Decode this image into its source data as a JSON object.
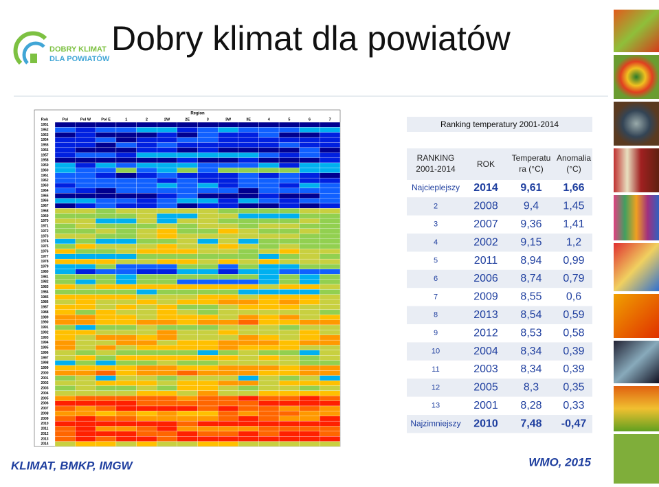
{
  "slide": {
    "title": "Dobry klimat dla powiatów",
    "logo": {
      "line1": "DOBRY KLIMAT",
      "line2": "DLA POWIATÓW"
    },
    "heatmap": {
      "header": "Region",
      "columns": [
        "Rok",
        "Pol",
        "Pol W",
        "Pol E",
        "1",
        "2",
        "2W",
        "2E",
        "3",
        "3W",
        "3E",
        "4",
        "5",
        "6",
        "7"
      ],
      "years": [
        "1951",
        "1952",
        "1953",
        "1954",
        "1955",
        "1956",
        "1957",
        "1958",
        "1959",
        "1960",
        "1961",
        "1962",
        "1963",
        "1964",
        "1965",
        "1966",
        "1967",
        "1968",
        "1969",
        "1970",
        "1971",
        "1972",
        "1973",
        "1974",
        "1975",
        "1976",
        "1977",
        "1978",
        "1979",
        "1980",
        "1981",
        "1982",
        "1983",
        "1984",
        "1985",
        "1986",
        "1987",
        "1988",
        "1989",
        "1990",
        "1991",
        "1992",
        "1993",
        "1994",
        "1995",
        "1996",
        "1997",
        "1998",
        "1999",
        "2000",
        "2001",
        "2002",
        "2003",
        "2004",
        "2005",
        "2006",
        "2007",
        "2008",
        "2009",
        "2010",
        "2011",
        "2012",
        "2013",
        "2014"
      ]
    },
    "table": {
      "title": "Ranking temperatury 2001-2014",
      "headers": [
        "RANKING 2001-2014",
        "ROK",
        "Temperatura (°C)",
        "Anomalia (°C)"
      ],
      "rows": [
        [
          "Najcieplejszy",
          "2014",
          "9,61",
          "1,66"
        ],
        [
          "2",
          "2008",
          "9,4",
          "1,45"
        ],
        [
          "3",
          "2007",
          "9,36",
          "1,41"
        ],
        [
          "4",
          "2002",
          "9,15",
          "1,2"
        ],
        [
          "5",
          "2011",
          "8,94",
          "0,99"
        ],
        [
          "6",
          "2006",
          "8,74",
          "0,79"
        ],
        [
          "7",
          "2009",
          "8,55",
          "0,6"
        ],
        [
          "8",
          "2013",
          "8,54",
          "0,59"
        ],
        [
          "9",
          "2012",
          "8,53",
          "0,58"
        ],
        [
          "10",
          "2004",
          "8,34",
          "0,39"
        ],
        [
          "11",
          "2003",
          "8,34",
          "0,39"
        ],
        [
          "12",
          "2005",
          "8,3",
          "0,35"
        ],
        [
          "13",
          "2001",
          "8,28",
          "0,33"
        ],
        [
          "Najzimniejszy",
          "2010",
          "7,48",
          "-0,47"
        ]
      ]
    },
    "footer": {
      "left": "KLIMAT, BMKP, IMGW",
      "right": "WMO, 2015"
    }
  }
}
